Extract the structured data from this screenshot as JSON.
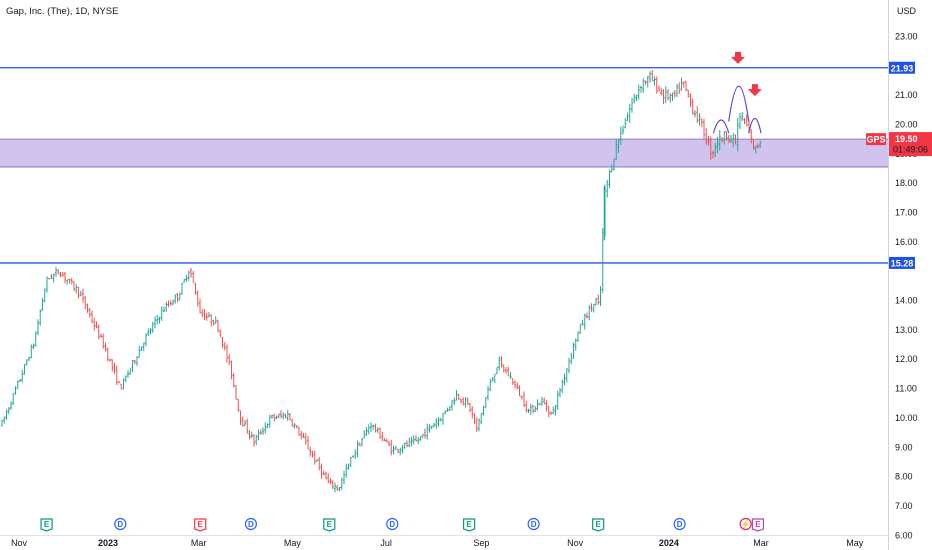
{
  "header": {
    "title": "Gap, Inc. (The), 1D, NYSE",
    "currency": "USD"
  },
  "colors": {
    "up": "#26a69a",
    "down": "#ef5350",
    "support_line": "#1e53e5",
    "zone_fill": "#c9b8ea",
    "zone_border": "#9575cd",
    "arrow": "#f23645",
    "arc": "#5b4bd1",
    "price_tag": "#f23645"
  },
  "price_tag": {
    "symbol": "GPS",
    "price": "19.50",
    "countdown": "01:49:06"
  },
  "level_tags": [
    "21.93",
    "15.28"
  ],
  "events": [
    {
      "label": "E",
      "kind": "earnings",
      "date": "2022-11-22"
    },
    {
      "label": "D",
      "kind": "dividend",
      "date": "2023-01-09"
    },
    {
      "label": "E",
      "kind": "earnings-miss",
      "date": "2023-03-02"
    },
    {
      "label": "D",
      "kind": "dividend",
      "date": "2023-04-04"
    },
    {
      "label": "E",
      "kind": "earnings",
      "date": "2023-05-25"
    },
    {
      "label": "D",
      "kind": "dividend",
      "date": "2023-07-05"
    },
    {
      "label": "E",
      "kind": "earnings",
      "date": "2023-08-24"
    },
    {
      "label": "D",
      "kind": "dividend",
      "date": "2023-10-05"
    },
    {
      "label": "E",
      "kind": "earnings",
      "date": "2023-11-16"
    },
    {
      "label": "D",
      "kind": "dividend",
      "date": "2024-01-08"
    },
    {
      "label": "⚡",
      "kind": "split",
      "date": "2024-02-20"
    },
    {
      "label": "E",
      "kind": "earnings-upcoming",
      "date": "2024-02-28"
    }
  ],
  "chart_data": {
    "type": "candlestick",
    "title": "Gap, Inc. (The), 1D, NYSE",
    "xlabel": "",
    "ylabel": "USD",
    "ylim": [
      5.8,
      23.4
    ],
    "x_ticks": [
      "Nov",
      "2023",
      "Mar",
      "May",
      "Jul",
      "Sep",
      "Nov",
      "2024",
      "Mar",
      "May"
    ],
    "y_ticks": [
      "23.00",
      "21.00",
      "20.00",
      "19.00",
      "18.00",
      "17.00",
      "16.00",
      "14.00",
      "13.00",
      "12.00",
      "11.00",
      "10.00",
      "9.00",
      "8.00",
      "7.00",
      "6.00"
    ],
    "horizontal_levels": [
      21.93,
      15.28
    ],
    "zone": [
      18.55,
      19.5
    ],
    "last_price": 19.5,
    "annotations": [
      {
        "type": "arrow-down",
        "date": "2024-02-15",
        "price": 22.2
      },
      {
        "type": "arrow-down",
        "date": "2024-02-26",
        "price": 21.1
      },
      {
        "type": "arc",
        "from": "2024-01-30",
        "to": "2024-02-09",
        "peak": 20.15,
        "base": 19.7
      },
      {
        "type": "arc",
        "from": "2024-02-09",
        "to": "2024-02-22",
        "peak": 21.3,
        "base": 20.1
      },
      {
        "type": "arc",
        "from": "2024-02-22",
        "to": "2024-03-01",
        "peak": 20.2,
        "base": 19.7
      }
    ],
    "keypoints": [
      [
        "2022-10-24",
        9.8
      ],
      [
        "2022-11-03",
        11.1
      ],
      [
        "2022-11-14",
        12.6
      ],
      [
        "2022-11-22",
        14.7
      ],
      [
        "2022-11-30",
        15.0
      ],
      [
        "2022-12-13",
        14.3
      ],
      [
        "2022-12-29",
        12.5
      ],
      [
        "2023-01-09",
        11.0
      ],
      [
        "2023-01-25",
        12.7
      ],
      [
        "2023-02-06",
        13.7
      ],
      [
        "2023-02-16",
        14.2
      ],
      [
        "2023-02-23",
        15.1
      ],
      [
        "2023-03-02",
        13.6
      ],
      [
        "2023-03-13",
        13.2
      ],
      [
        "2023-03-22",
        11.6
      ],
      [
        "2023-03-28",
        10.0
      ],
      [
        "2023-04-06",
        9.2
      ],
      [
        "2023-04-17",
        10.0
      ],
      [
        "2023-04-28",
        10.1
      ],
      [
        "2023-05-10",
        9.1
      ],
      [
        "2023-05-24",
        7.8
      ],
      [
        "2023-05-31",
        7.6
      ],
      [
        "2023-06-09",
        8.7
      ],
      [
        "2023-06-21",
        9.8
      ],
      [
        "2023-07-05",
        8.9
      ],
      [
        "2023-07-21",
        9.2
      ],
      [
        "2023-07-28",
        9.6
      ],
      [
        "2023-08-07",
        10.1
      ],
      [
        "2023-08-16",
        10.8
      ],
      [
        "2023-08-24",
        10.4
      ],
      [
        "2023-08-29",
        9.6
      ],
      [
        "2023-09-05",
        10.9
      ],
      [
        "2023-09-12",
        11.9
      ],
      [
        "2023-09-21",
        11.3
      ],
      [
        "2023-10-02",
        10.2
      ],
      [
        "2023-10-10",
        10.6
      ],
      [
        "2023-10-17",
        10.1
      ],
      [
        "2023-10-26",
        11.6
      ],
      [
        "2023-11-02",
        12.8
      ],
      [
        "2023-11-08",
        13.5
      ],
      [
        "2023-11-15",
        14.0
      ],
      [
        "2023-11-17",
        13.7
      ],
      [
        "2023-11-20",
        17.6
      ],
      [
        "2023-11-28",
        19.3
      ],
      [
        "2023-12-07",
        20.6
      ],
      [
        "2023-12-14",
        21.4
      ],
      [
        "2023-12-20",
        21.6
      ],
      [
        "2023-12-28",
        21.0
      ],
      [
        "2024-01-04",
        20.9
      ],
      [
        "2024-01-10",
        21.4
      ],
      [
        "2024-01-16",
        20.6
      ],
      [
        "2024-01-22",
        20.0
      ],
      [
        "2024-01-29",
        19.0
      ],
      [
        "2024-02-01",
        19.4
      ],
      [
        "2024-02-08",
        19.7
      ],
      [
        "2024-02-13",
        19.3
      ],
      [
        "2024-02-16",
        20.3
      ],
      [
        "2024-02-21",
        19.9
      ],
      [
        "2024-02-26",
        19.1
      ],
      [
        "2024-03-01",
        19.5
      ]
    ]
  }
}
